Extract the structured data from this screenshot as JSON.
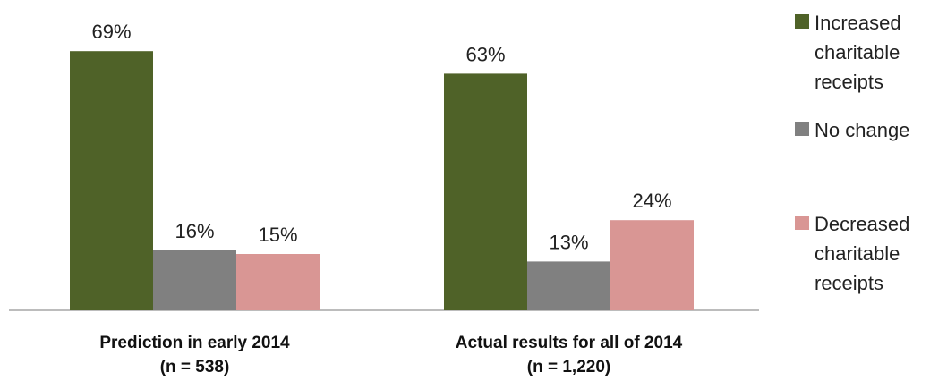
{
  "chart_data": {
    "type": "bar",
    "title": "",
    "xlabel": "",
    "ylabel": "",
    "ylim": [
      0,
      75
    ],
    "grid": false,
    "legend_position": "right",
    "categories": [
      {
        "line1": "Prediction in early 2014",
        "line2": "(n = 538)"
      },
      {
        "line1": "Actual results for all of 2014",
        "line2": "(n = 1,220)"
      }
    ],
    "series": [
      {
        "name_lines": [
          "Increased",
          "charitable",
          "receipts"
        ],
        "color": "#4f6228",
        "values": [
          69,
          63
        ],
        "labels": [
          "69%",
          "63%"
        ]
      },
      {
        "name_lines": [
          "No change"
        ],
        "color": "#808080",
        "values": [
          16,
          13
        ],
        "labels": [
          "16%",
          "13%"
        ]
      },
      {
        "name_lines": [
          "Decreased",
          "charitable",
          "receipts"
        ],
        "color": "#d99694",
        "values": [
          15,
          24
        ],
        "labels": [
          "15%",
          "24%"
        ]
      }
    ]
  }
}
